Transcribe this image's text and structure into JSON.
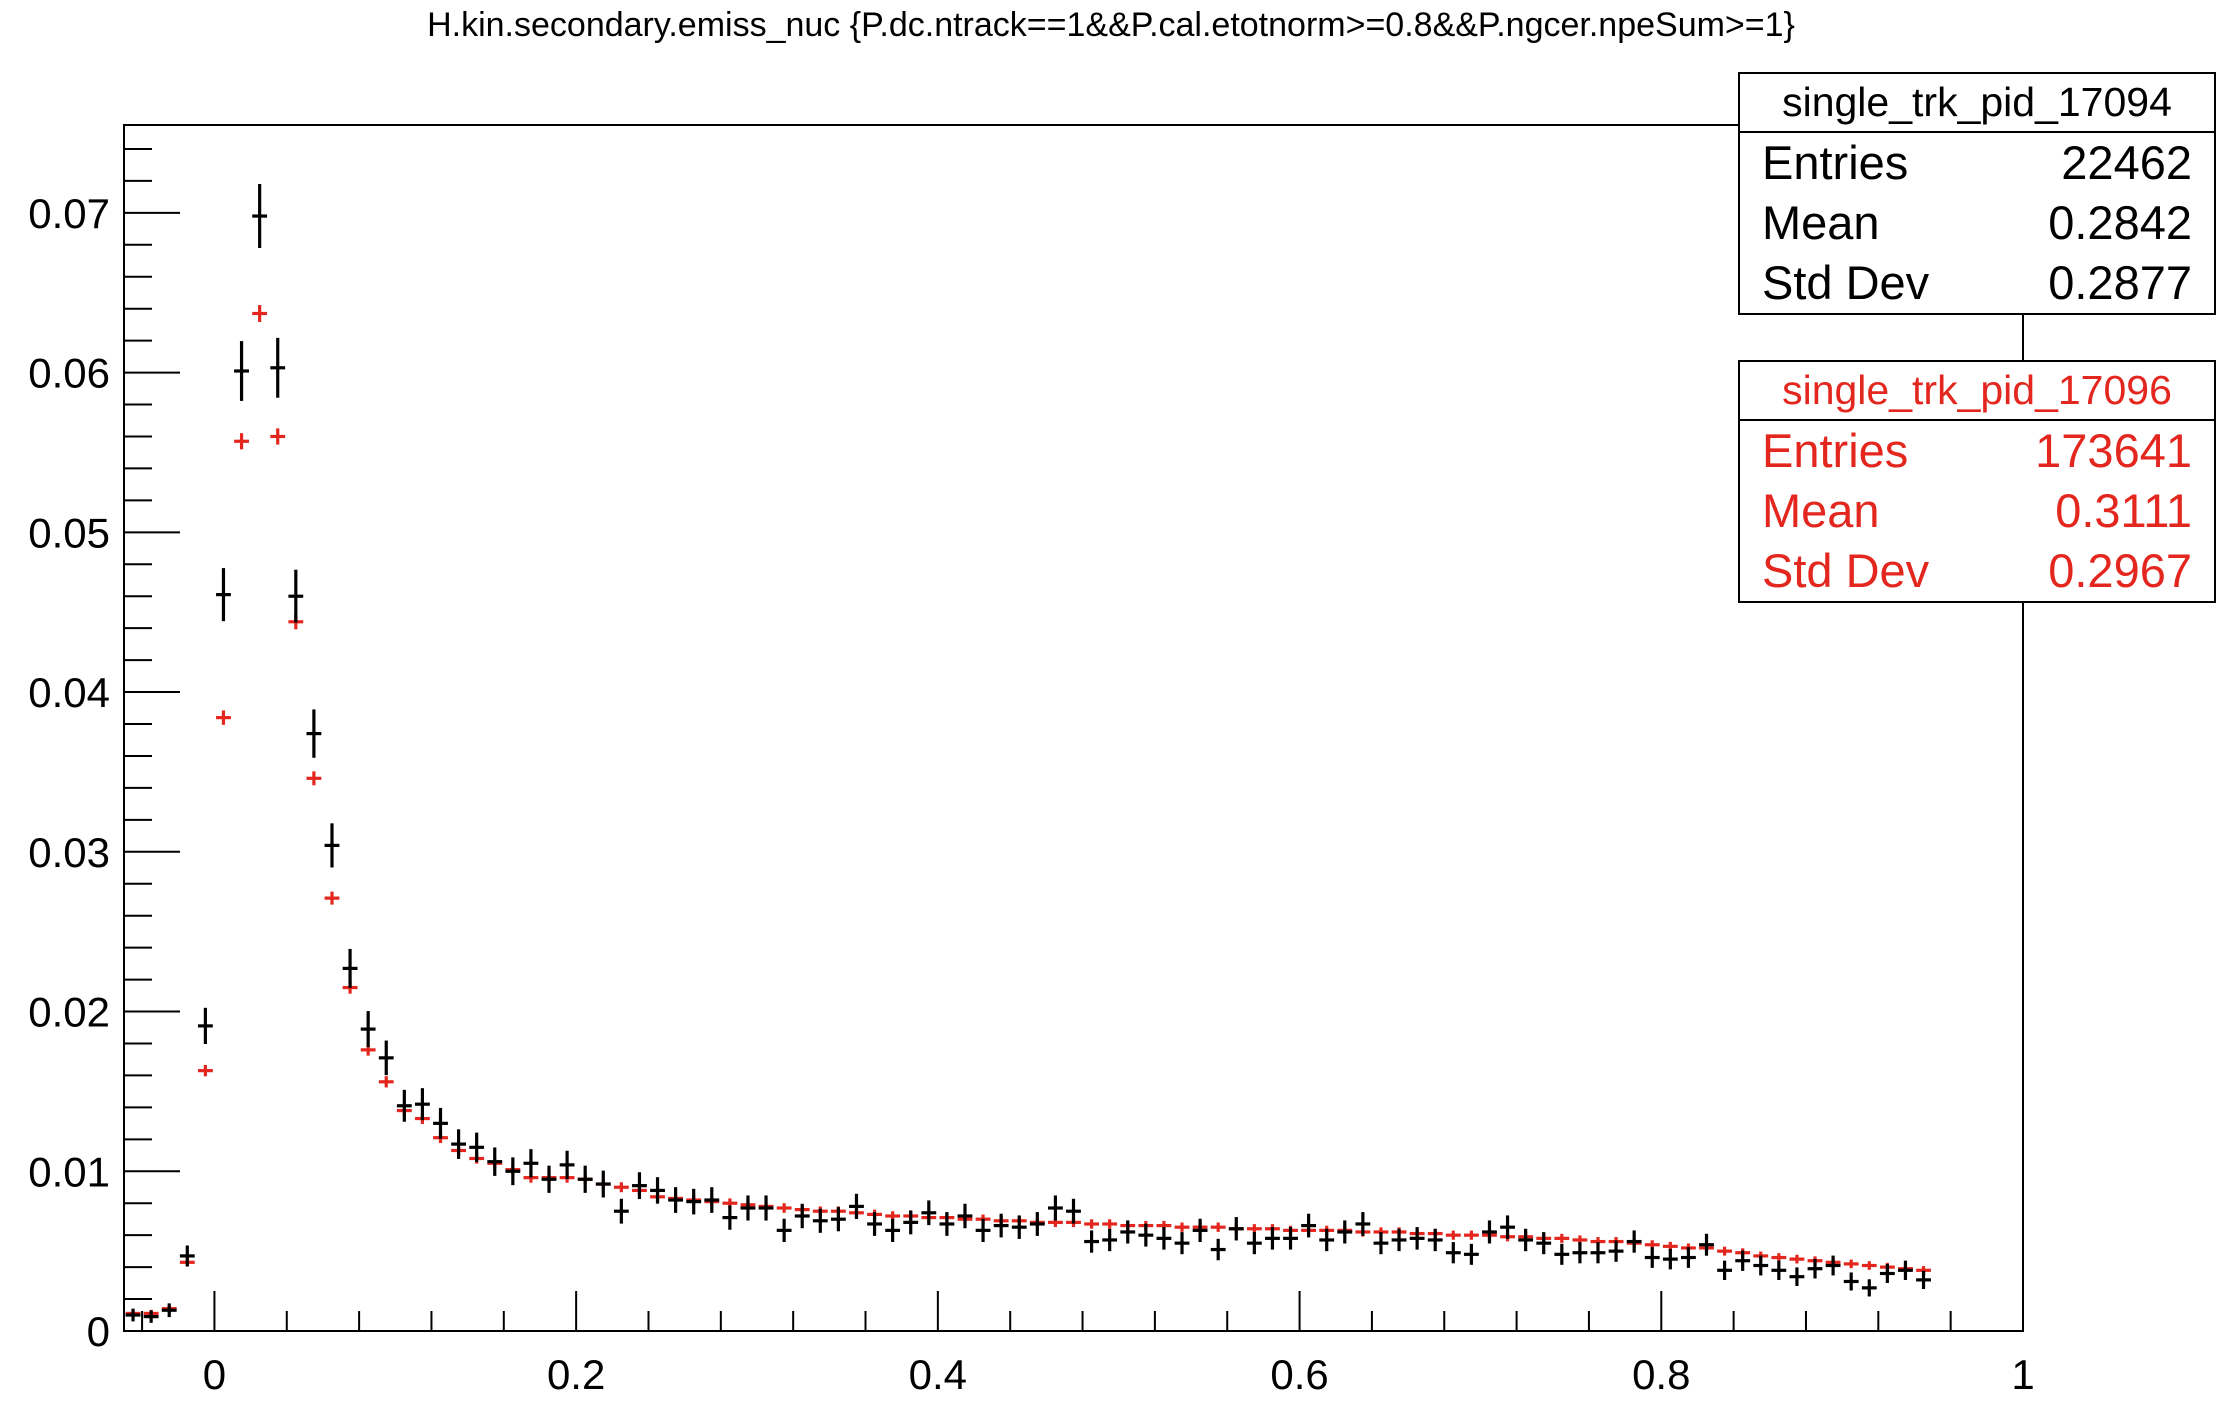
{
  "chart_data": {
    "type": "scatter",
    "title": "H.kin.secondary.emiss_nuc {P.dc.ntrack==1&&P.cal.etotnorm>=0.8&&P.ngcer.npeSum>=1}",
    "xlabel": "",
    "ylabel": "",
    "xlim": [
      -0.05,
      1.0
    ],
    "ylim": [
      0,
      0.0755
    ],
    "x_ticks": [
      "0",
      "0.2",
      "0.4",
      "0.6",
      "0.8",
      "1"
    ],
    "y_ticks": [
      "0",
      "0.01",
      "0.02",
      "0.03",
      "0.04",
      "0.05",
      "0.06",
      "0.07"
    ],
    "bin_width": 0.01,
    "first_bin_center": -0.045,
    "series": [
      {
        "name": "single_trk_pid_17094",
        "color": "#000000",
        "entries": "22462",
        "mean": "0.2842",
        "stddev": "0.2877",
        "error_bar_relative": 0.025,
        "values": [
          0.001,
          0.0009,
          0.0013,
          0.0047,
          0.0191,
          0.0461,
          0.0601,
          0.0698,
          0.0603,
          0.046,
          0.0374,
          0.0304,
          0.0227,
          0.0189,
          0.0171,
          0.0141,
          0.0142,
          0.013,
          0.0117,
          0.0115,
          0.0106,
          0.01,
          0.0105,
          0.0095,
          0.0104,
          0.0095,
          0.0092,
          0.0075,
          0.0091,
          0.0088,
          0.0082,
          0.0081,
          0.0082,
          0.0071,
          0.0077,
          0.0077,
          0.0063,
          0.0072,
          0.0069,
          0.007,
          0.0078,
          0.0067,
          0.0063,
          0.0068,
          0.0074,
          0.0067,
          0.0072,
          0.0063,
          0.0066,
          0.0065,
          0.0067,
          0.0077,
          0.0075,
          0.0056,
          0.0057,
          0.0062,
          0.006,
          0.0058,
          0.0055,
          0.0063,
          0.0051,
          0.0064,
          0.0055,
          0.0058,
          0.0058,
          0.0066,
          0.0057,
          0.0062,
          0.0067,
          0.0055,
          0.0057,
          0.0058,
          0.0057,
          0.0049,
          0.0048,
          0.0062,
          0.0065,
          0.0057,
          0.0055,
          0.0048,
          0.0049,
          0.0049,
          0.005,
          0.0056,
          0.0046,
          0.0045,
          0.0046,
          0.0054,
          0.0038,
          0.0044,
          0.0041,
          0.0038,
          0.0034,
          0.0039,
          0.0041,
          0.0031,
          0.0027,
          0.0036,
          0.0038,
          0.0032
        ]
      },
      {
        "name": "single_trk_pid_17096",
        "color": "#e3261e",
        "entries": "173641",
        "mean": "0.3111",
        "stddev": "0.2967",
        "error_bar_relative": 0.008,
        "values": [
          0.0011,
          0.0011,
          0.0014,
          0.0043,
          0.0163,
          0.0384,
          0.0557,
          0.0637,
          0.056,
          0.0444,
          0.0346,
          0.0271,
          0.0215,
          0.0176,
          0.0156,
          0.0138,
          0.0133,
          0.0121,
          0.0113,
          0.0108,
          0.0105,
          0.0101,
          0.0096,
          0.0096,
          0.0096,
          0.0095,
          0.0092,
          0.009,
          0.0088,
          0.0084,
          0.0083,
          0.0082,
          0.0081,
          0.008,
          0.0079,
          0.0078,
          0.0077,
          0.0076,
          0.0075,
          0.0075,
          0.0074,
          0.0073,
          0.0072,
          0.0072,
          0.0071,
          0.0071,
          0.007,
          0.007,
          0.0069,
          0.0069,
          0.0068,
          0.0068,
          0.0068,
          0.0067,
          0.0067,
          0.0066,
          0.0066,
          0.0066,
          0.0065,
          0.0065,
          0.0065,
          0.0064,
          0.0064,
          0.0064,
          0.0063,
          0.0063,
          0.0063,
          0.0063,
          0.0062,
          0.0062,
          0.0062,
          0.0061,
          0.0061,
          0.006,
          0.006,
          0.006,
          0.0059,
          0.0059,
          0.0058,
          0.0058,
          0.0057,
          0.0056,
          0.0056,
          0.0055,
          0.0054,
          0.0053,
          0.0052,
          0.0052,
          0.005,
          0.0049,
          0.0047,
          0.0046,
          0.0045,
          0.0044,
          0.0043,
          0.0042,
          0.0041,
          0.004,
          0.0039,
          0.0038
        ]
      }
    ]
  },
  "stats": {
    "box1": {
      "name": "single_trk_pid_17094",
      "rows": [
        {
          "label": "Entries",
          "value": "22462"
        },
        {
          "label": "Mean",
          "value": "0.2842"
        },
        {
          "label": "Std Dev",
          "value": "0.2877"
        }
      ]
    },
    "box2": {
      "name": "single_trk_pid_17096",
      "rows": [
        {
          "label": "Entries",
          "value": "173641"
        },
        {
          "label": "Mean",
          "value": "0.3111"
        },
        {
          "label": "Std Dev",
          "value": "0.2967"
        }
      ]
    }
  }
}
